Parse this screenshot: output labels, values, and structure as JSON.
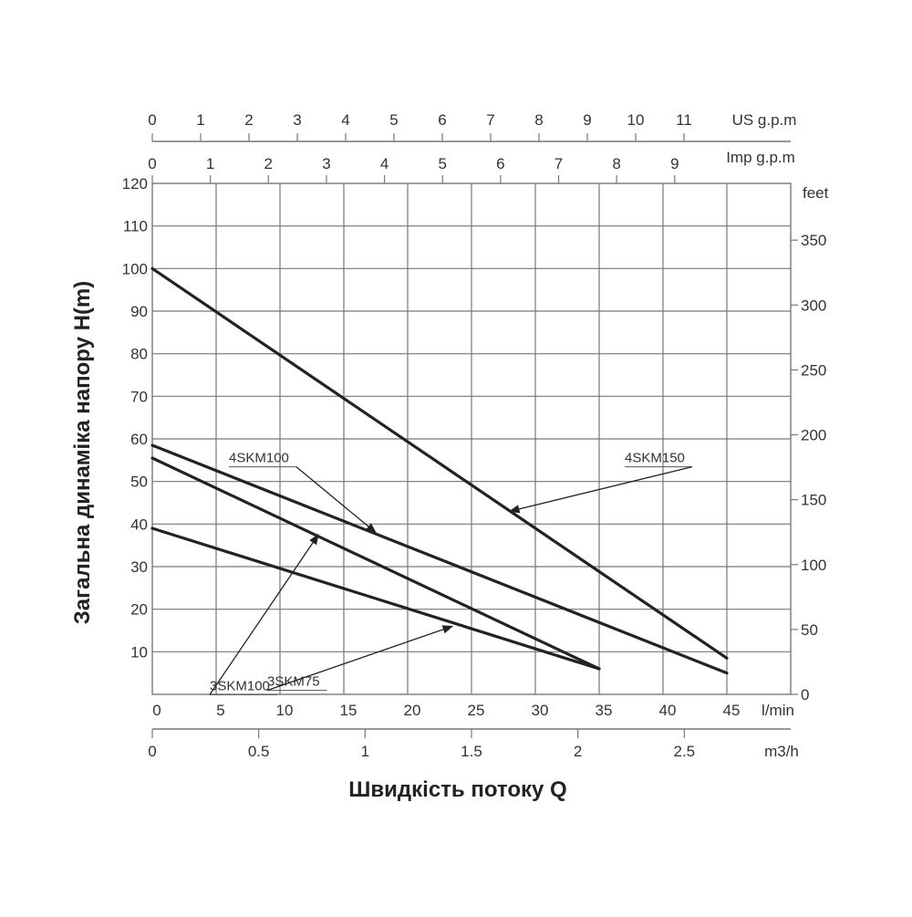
{
  "chart_data": {
    "type": "line",
    "title": "",
    "xlabel": "Швидкість потоку Q",
    "ylabel": "Загальна динаміка напору H(m)",
    "x_unit": "l/min",
    "xlim": [
      0,
      50
    ],
    "ylim": [
      0,
      120
    ],
    "grid": true,
    "x_ticks": [
      "0",
      "5",
      "10",
      "15",
      "20",
      "25",
      "30",
      "35",
      "40",
      "45"
    ],
    "y_ticks": [
      "10",
      "20",
      "30",
      "40",
      "50",
      "60",
      "70",
      "80",
      "90",
      "100",
      "110",
      "120"
    ],
    "y_right": {
      "unit": "feet",
      "ticks": [
        {
          "value": 0,
          "label": "0"
        },
        {
          "value": 50,
          "label": "50"
        },
        {
          "value": 100,
          "label": "100"
        },
        {
          "value": 150,
          "label": "150"
        },
        {
          "value": 200,
          "label": "200"
        },
        {
          "value": 250,
          "label": "250"
        },
        {
          "value": 300,
          "label": "300"
        },
        {
          "value": 350,
          "label": "350"
        }
      ]
    },
    "x_bottom_secondary": {
      "unit": "m3/h",
      "ticks": [
        {
          "value": 0,
          "label": "0"
        },
        {
          "value": 0.5,
          "label": "0.5"
        },
        {
          "value": 1,
          "label": "1"
        },
        {
          "value": 1.5,
          "label": "1.5"
        },
        {
          "value": 2,
          "label": "2"
        },
        {
          "value": 2.5,
          "label": "2.5"
        }
      ]
    },
    "x_top_us": {
      "unit": "US g.p.m",
      "ticks": [
        "0",
        "1",
        "2",
        "3",
        "4",
        "5",
        "6",
        "7",
        "8",
        "9",
        "10",
        "11"
      ]
    },
    "x_top_imp": {
      "unit": "Imp g.p.m",
      "ticks": [
        "0",
        "1",
        "2",
        "3",
        "4",
        "5",
        "6",
        "7",
        "8",
        "9"
      ]
    },
    "series": [
      {
        "name": "4SKM150",
        "x": [
          0,
          45
        ],
        "y": [
          100,
          8.5
        ],
        "label_at": [
          37,
          109
        ],
        "arrow_at": [
          28,
          43
        ]
      },
      {
        "name": "4SKM100",
        "x": [
          0,
          45
        ],
        "y": [
          58.5,
          5
        ],
        "label_at": [
          6,
          109
        ],
        "arrow_at": [
          17.5,
          38
        ]
      },
      {
        "name": "3SKM100",
        "x": [
          0,
          35
        ],
        "y": [
          55.5,
          6
        ],
        "label_at": [
          4.5,
          2
        ],
        "arrow_at": [
          13,
          37.5
        ]
      },
      {
        "name": "3SKM75",
        "x": [
          0,
          35
        ],
        "y": [
          39,
          6
        ],
        "label_at": [
          9,
          4
        ],
        "arrow_at": [
          23.5,
          16
        ]
      }
    ]
  }
}
